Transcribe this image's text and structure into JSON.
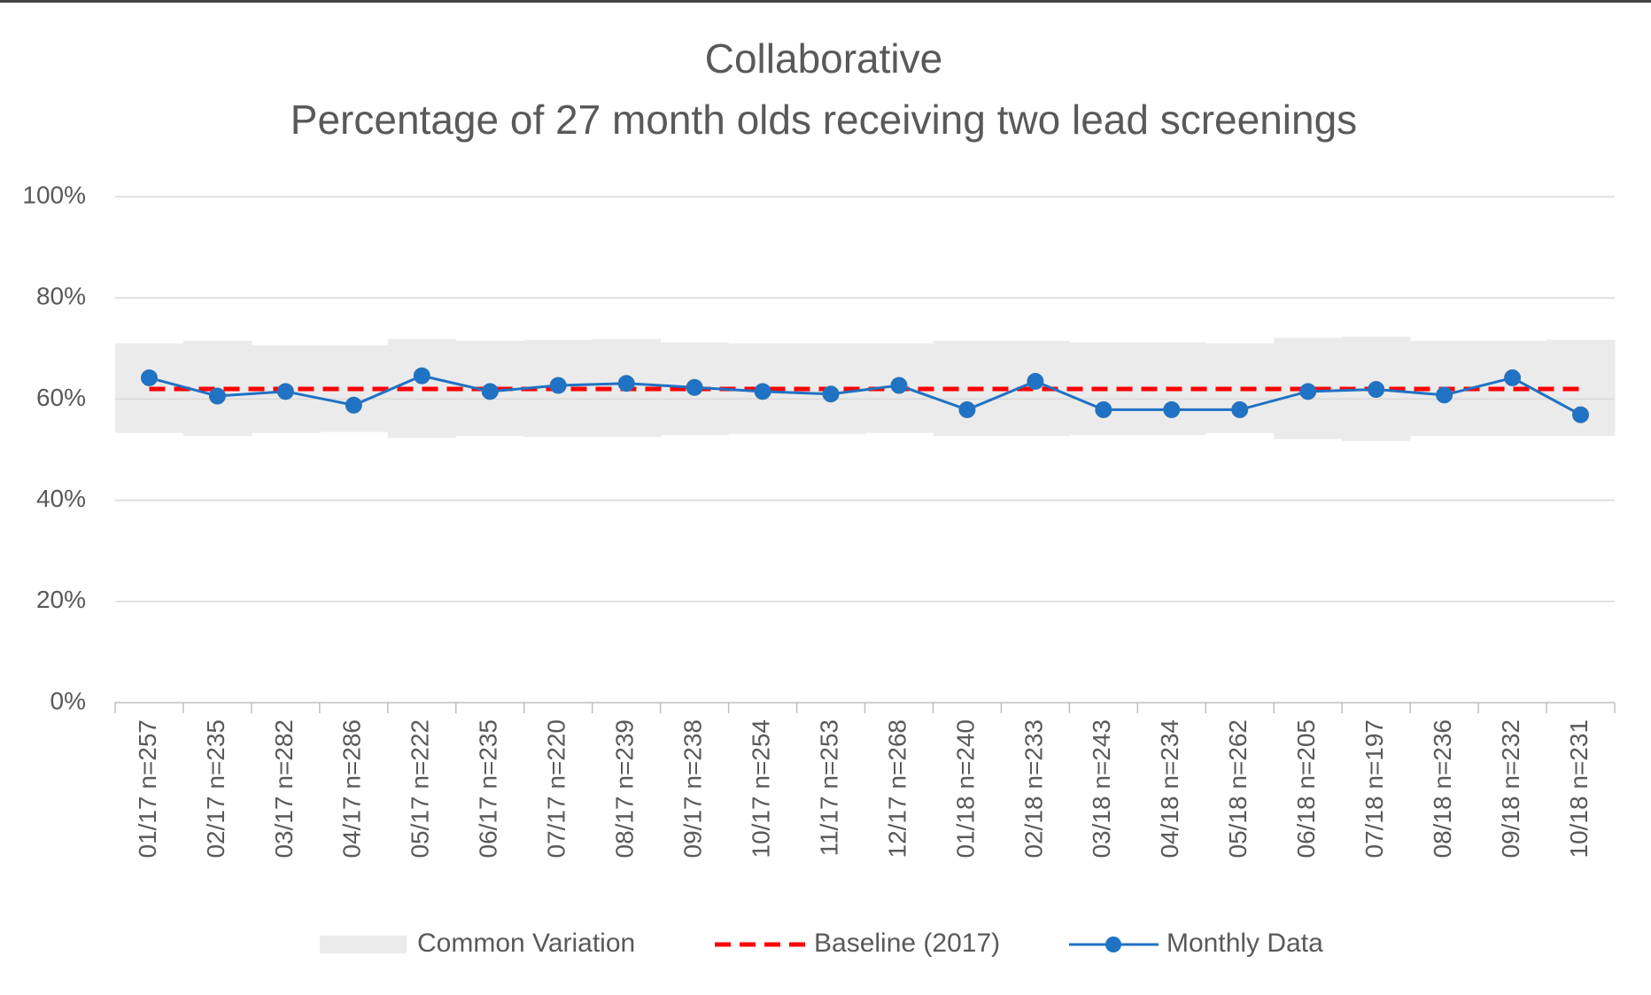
{
  "chart_data": {
    "type": "line",
    "title": "Collaborative",
    "subtitle": "Percentage of 27 month olds receiving two lead screenings",
    "categories": [
      "01/17 n=257",
      "02/17 n=235",
      "03/17 n=282",
      "04/17 n=286",
      "05/17 n=222",
      "06/17 n=235",
      "07/17 n=220",
      "08/17 n=239",
      "09/17 n=238",
      "10/17 n=254",
      "11/17 n=253",
      "12/17 n=268",
      "01/18 n=240",
      "02/18 n=233",
      "03/18 n=243",
      "04/18 n=234",
      "05/18 n=262",
      "06/18 n=205",
      "07/18 n=197",
      "08/18 n=236",
      "09/18 n=232",
      "10/18 n=231"
    ],
    "band": {
      "name": "Common Variation",
      "color": "#ebebeb",
      "upper": [
        71.0,
        71.5,
        70.6,
        70.6,
        71.9,
        71.5,
        71.7,
        71.9,
        71.2,
        71.0,
        71.0,
        71.0,
        71.5,
        71.5,
        71.2,
        71.2,
        71.0,
        72.1,
        72.3,
        71.5,
        71.5,
        71.7
      ],
      "lower": [
        53.3,
        52.7,
        53.3,
        53.5,
        52.3,
        52.7,
        52.5,
        52.5,
        52.9,
        53.1,
        53.1,
        53.3,
        52.7,
        52.7,
        52.9,
        52.9,
        53.3,
        52.1,
        51.7,
        52.7,
        52.7,
        52.7
      ]
    },
    "series": [
      {
        "name": "Baseline (2017)",
        "color": "#ff0000",
        "dashed": true,
        "values": [
          62,
          62,
          62,
          62,
          62,
          62,
          62,
          62,
          62,
          62,
          62,
          62,
          62,
          62,
          62,
          62,
          62,
          62,
          62,
          62,
          62,
          62
        ]
      },
      {
        "name": "Monthly Data",
        "color": "#1f72c4",
        "markers": true,
        "values": [
          64.2,
          60.6,
          61.5,
          58.8,
          64.6,
          61.5,
          62.7,
          63.1,
          62.3,
          61.5,
          61.0,
          62.7,
          57.9,
          63.5,
          57.9,
          57.9,
          57.9,
          61.5,
          61.9,
          60.8,
          64.2,
          56.9
        ]
      }
    ],
    "ylim": [
      0,
      100
    ],
    "yticks": [
      {
        "value": 0,
        "label": "0%"
      },
      {
        "value": 20,
        "label": "20%"
      },
      {
        "value": 40,
        "label": "40%"
      },
      {
        "value": 60,
        "label": "60%"
      },
      {
        "value": 80,
        "label": "80%"
      },
      {
        "value": 100,
        "label": "100%"
      }
    ],
    "grid": true
  }
}
